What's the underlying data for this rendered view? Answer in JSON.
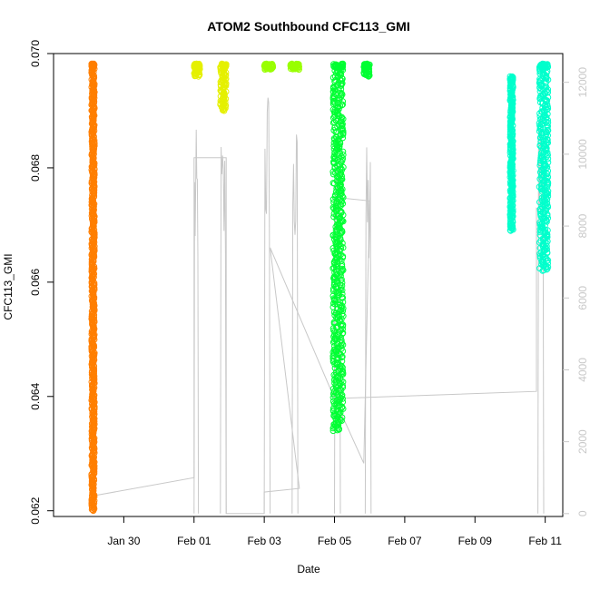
{
  "chart_data": {
    "type": "scatter",
    "title": "ATOM2 Southbound CFC113_GMI",
    "xlabel": "Date",
    "ylabel": "CFC113_GMI",
    "xlim": [
      "2016-01-28T00:00",
      "2016-02-11T12:00"
    ],
    "ylim": [
      0.0619,
      0.07
    ],
    "y2lim": [
      -80,
      12800
    ],
    "x_ticks": [
      {
        "date": "2016-01-30T00:00",
        "label": "Jan 30"
      },
      {
        "date": "2016-02-01T00:00",
        "label": "Feb 01"
      },
      {
        "date": "2016-02-03T00:00",
        "label": "Feb 03"
      },
      {
        "date": "2016-02-05T00:00",
        "label": "Feb 05"
      },
      {
        "date": "2016-02-07T00:00",
        "label": "Feb 07"
      },
      {
        "date": "2016-02-09T00:00",
        "label": "Feb 09"
      },
      {
        "date": "2016-02-11T00:00",
        "label": "Feb 11"
      }
    ],
    "y_ticks": [
      "0.062",
      "0.064",
      "0.066",
      "0.068",
      "0.070"
    ],
    "y2_ticks": [
      "0",
      "2000",
      "4000",
      "6000",
      "8000",
      "10000",
      "12000"
    ],
    "grid": false,
    "series": [
      {
        "color": "#ff7f00",
        "segments": [
          {
            "t_start": "2016-01-29T02:00",
            "t_end": "2016-01-29T04:00",
            "y_min": 0.062,
            "y_max": 0.06982
          }
        ]
      },
      {
        "color": "#e5f000",
        "segments": [
          {
            "t_start": "2016-02-01T00:00",
            "t_end": "2016-02-01T04:00",
            "y_min": 0.0696,
            "y_max": 0.06982
          },
          {
            "t_start": "2016-02-01T18:00",
            "t_end": "2016-02-01T22:00",
            "y_min": 0.069,
            "y_max": 0.06982
          }
        ]
      },
      {
        "color": "#99ff00",
        "segments": [
          {
            "t_start": "2016-02-03T00:00",
            "t_end": "2016-02-03T06:00",
            "y_min": 0.06972,
            "y_max": 0.06982
          },
          {
            "t_start": "2016-02-03T18:00",
            "t_end": "2016-02-04T00:00",
            "y_min": 0.06972,
            "y_max": 0.06982
          }
        ]
      },
      {
        "color": "#00ff33",
        "segments": [
          {
            "t_start": "2016-02-04T23:00",
            "t_end": "2016-02-05T06:00",
            "y_min": 0.0634,
            "y_max": 0.06982
          },
          {
            "t_start": "2016-02-05T20:00",
            "t_end": "2016-02-06T00:00",
            "y_min": 0.0696,
            "y_max": 0.06982
          }
        ]
      },
      {
        "color": "#00ffcc",
        "segments": [
          {
            "t_start": "2016-02-10T00:00",
            "t_end": "2016-02-10T02:00",
            "y_min": 0.0669,
            "y_max": 0.0696
          },
          {
            "t_start": "2016-02-10T20:00",
            "t_end": "2016-02-11T02:00",
            "y_min": 0.0662,
            "y_max": 0.06982
          }
        ]
      }
    ],
    "altitude": {
      "color": "#c8c8c8",
      "flights": [
        {
          "t_start": "2016-02-01T00:00",
          "t_end": "2016-02-01T03:00",
          "peak": 10700
        },
        {
          "t_start": "2016-02-01T18:00",
          "t_end": "2016-02-01T22:00",
          "peak": 10700
        },
        {
          "t_start": "2016-02-03T00:00",
          "t_end": "2016-02-03T04:00",
          "peak": 12200
        },
        {
          "t_start": "2016-02-03T19:00",
          "t_end": "2016-02-03T23:00",
          "peak": 10900
        },
        {
          "t_start": "2016-02-05T00:00",
          "t_end": "2016-02-05T04:00",
          "peak": 10700
        },
        {
          "t_start": "2016-02-05T21:00",
          "t_end": "2016-02-06T01:00",
          "peak": 10300
        },
        {
          "t_start": "2016-02-10T19:00",
          "t_end": "2016-02-10T23:00",
          "peak": 11800
        }
      ],
      "connector": [
        {
          "t": "2016-01-29T04:00",
          "v": 500
        },
        {
          "t": "2016-02-01T00:00",
          "v": 1000
        },
        {
          "t": "2016-02-01T00:00",
          "v": 9900
        },
        {
          "t": "2016-02-01T22:00",
          "v": 9900
        },
        {
          "t": "2016-02-01T22:00",
          "v": 0
        },
        {
          "t": "2016-02-03T00:00",
          "v": 0
        },
        {
          "t": "2016-02-03T00:00",
          "v": 600
        },
        {
          "t": "2016-02-04T00:00",
          "v": 700
        },
        {
          "t": "2016-02-03T04:00",
          "v": 7400
        },
        {
          "t": "2016-02-05T00:00",
          "v": 3200
        },
        {
          "t": "2016-02-05T00:00",
          "v": 8800
        },
        {
          "t": "2016-02-06T00:00",
          "v": 8700
        },
        {
          "t": "2016-02-05T20:00",
          "v": 1400
        },
        {
          "t": "2016-02-05T00:00",
          "v": 3200
        },
        {
          "t": "2016-02-10T18:00",
          "v": 3400
        },
        {
          "t": "2016-02-10T18:00",
          "v": 8500
        },
        {
          "t": "2016-02-11T00:00",
          "v": 8400
        }
      ]
    }
  }
}
